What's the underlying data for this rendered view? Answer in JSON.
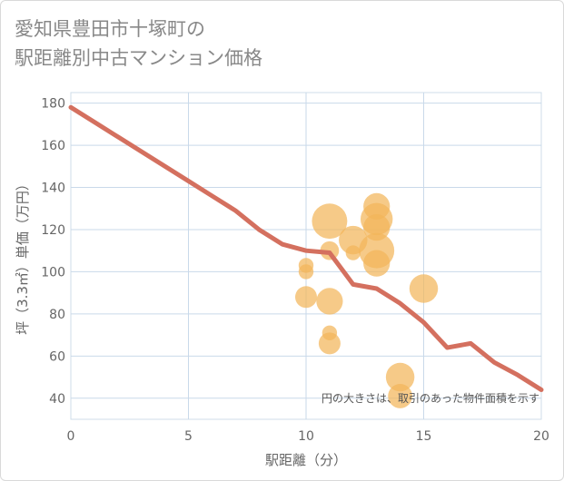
{
  "chart_data": {
    "type": "scatter",
    "title_line1": "愛知県豊田市十塚町の",
    "title_line2": "駅距離別中古マンション価格",
    "xlabel": "駅距離（分）",
    "ylabel": "坪（3.3㎡）単価（万円）",
    "xlim": [
      0,
      20
    ],
    "ylim": [
      30,
      185
    ],
    "xticks": [
      0,
      5,
      10,
      15,
      20
    ],
    "yticks": [
      40,
      60,
      80,
      100,
      120,
      140,
      160,
      180
    ],
    "grid": true,
    "note": "円の大きさは、取引のあった物件面積を示す",
    "colors": {
      "bubble": "#f2b55a",
      "line": "#d4705f",
      "grid": "#c9d9ea"
    },
    "series": [
      {
        "name": "trend",
        "kind": "line",
        "x": [
          0,
          1,
          2,
          3,
          4,
          5,
          6,
          7,
          8,
          9,
          10,
          11,
          12,
          13,
          14,
          15,
          16,
          17,
          18,
          19,
          20
        ],
        "y": [
          178,
          171,
          164,
          157,
          150,
          143,
          136,
          129,
          120,
          113,
          110,
          109,
          94,
          92,
          85,
          76,
          64,
          66,
          57,
          51,
          44
        ]
      },
      {
        "name": "transactions",
        "kind": "bubble",
        "points": [
          {
            "x": 10,
            "y": 103,
            "s": 1
          },
          {
            "x": 10,
            "y": 100,
            "s": 1
          },
          {
            "x": 10,
            "y": 88,
            "s": 3
          },
          {
            "x": 11,
            "y": 124,
            "s": 10
          },
          {
            "x": 11,
            "y": 110,
            "s": 2
          },
          {
            "x": 11,
            "y": 86,
            "s": 5
          },
          {
            "x": 11,
            "y": 71,
            "s": 1
          },
          {
            "x": 11,
            "y": 66,
            "s": 3
          },
          {
            "x": 12,
            "y": 115,
            "s": 6
          },
          {
            "x": 12,
            "y": 109,
            "s": 1
          },
          {
            "x": 13,
            "y": 131,
            "s": 5
          },
          {
            "x": 13,
            "y": 125,
            "s": 8
          },
          {
            "x": 13,
            "y": 121,
            "s": 5
          },
          {
            "x": 13,
            "y": 110,
            "s": 10
          },
          {
            "x": 13,
            "y": 104,
            "s": 5
          },
          {
            "x": 14,
            "y": 50,
            "s": 6
          },
          {
            "x": 14,
            "y": 41,
            "s": 4
          },
          {
            "x": 15,
            "y": 92,
            "s": 6
          }
        ]
      }
    ]
  }
}
